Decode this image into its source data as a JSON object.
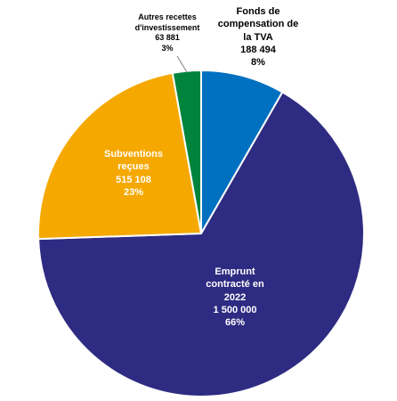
{
  "chart_data": {
    "type": "pie",
    "slices": [
      {
        "name": "Fonds de compensation de la TVA",
        "lines": [
          "Fonds de",
          "compensation de",
          "la TVA"
        ],
        "value": 188494,
        "value_label": "188 494",
        "percent_label": "8%",
        "color": "#0070C0"
      },
      {
        "name": "Emprunt contracté en 2022",
        "lines": [
          "Emprunt",
          "contracté en",
          "2022"
        ],
        "value": 1500000,
        "value_label": "1 500 000",
        "percent_label": "66%",
        "color": "#2E2B82"
      },
      {
        "name": "Subventions reçues",
        "lines": [
          "Subventions",
          "reçues"
        ],
        "value": 515108,
        "value_label": "515 108",
        "percent_label": "23%",
        "color": "#F5A800"
      },
      {
        "name": "Autres recettes d'investissement",
        "lines": [
          "Autres recettes",
          "d'investissement"
        ],
        "value": 63881,
        "value_label": "63 881",
        "percent_label": "3%",
        "color": "#00843D"
      }
    ]
  }
}
